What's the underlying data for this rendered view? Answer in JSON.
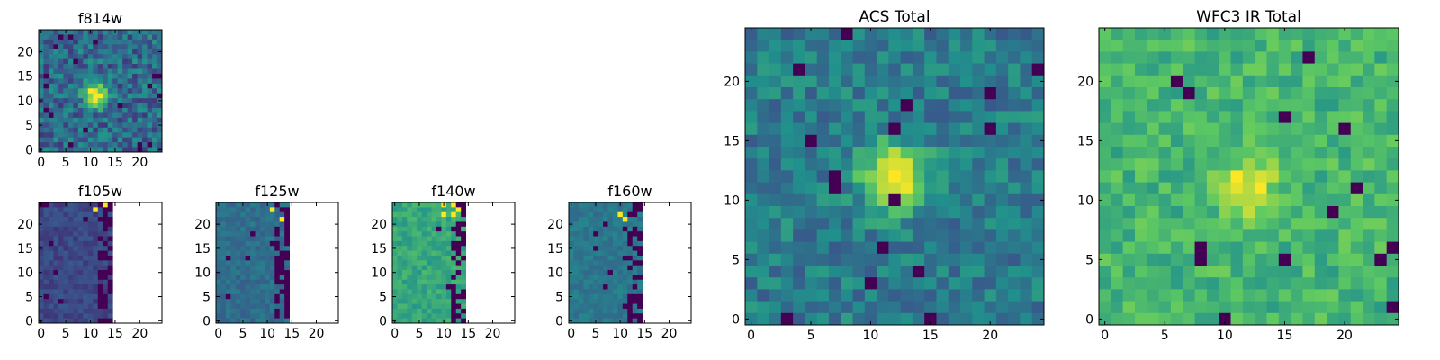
{
  "chart_data": [
    {
      "type": "heatmap",
      "title": "f814w",
      "xlim": [
        0,
        24
      ],
      "ylim": [
        0,
        24
      ],
      "xticks": [
        "0",
        "5",
        "10",
        "15",
        "20"
      ],
      "yticks": [
        "0",
        "5",
        "10",
        "15",
        "20"
      ],
      "source_peak": [
        11,
        11
      ],
      "valid_columns_max": 24
    },
    {
      "type": "heatmap",
      "title": "f105w",
      "xlim": [
        0,
        24
      ],
      "ylim": [
        0,
        24
      ],
      "xticks": [
        "0",
        "5",
        "10",
        "15",
        "20"
      ],
      "yticks": [
        "0",
        "5",
        "10",
        "15",
        "20"
      ],
      "valid_columns_max": 14
    },
    {
      "type": "heatmap",
      "title": "f125w",
      "xlim": [
        0,
        24
      ],
      "ylim": [
        0,
        24
      ],
      "xticks": [
        "0",
        "5",
        "10",
        "15",
        "20"
      ],
      "yticks": [
        "0",
        "5",
        "10",
        "15",
        "20"
      ],
      "valid_columns_max": 14
    },
    {
      "type": "heatmap",
      "title": "f140w",
      "xlim": [
        0,
        24
      ],
      "ylim": [
        0,
        24
      ],
      "xticks": [
        "0",
        "5",
        "10",
        "15",
        "20"
      ],
      "yticks": [
        "0",
        "5",
        "10",
        "15",
        "20"
      ],
      "valid_columns_max": 14
    },
    {
      "type": "heatmap",
      "title": "f160w",
      "xlim": [
        0,
        24
      ],
      "ylim": [
        0,
        24
      ],
      "xticks": [
        "0",
        "5",
        "10",
        "15",
        "20"
      ],
      "yticks": [
        "0",
        "5",
        "10",
        "15",
        "20"
      ],
      "valid_columns_max": 14
    },
    {
      "type": "heatmap",
      "title": "ACS Total",
      "xlim": [
        0,
        24
      ],
      "ylim": [
        0,
        24
      ],
      "xticks": [
        "0",
        "5",
        "10",
        "15",
        "20"
      ],
      "yticks": [
        "0",
        "5",
        "10",
        "15",
        "20"
      ],
      "source_peak": [
        12,
        12
      ],
      "valid_columns_max": 24
    },
    {
      "type": "heatmap",
      "title": "WFC3 IR Total",
      "xlim": [
        0,
        24
      ],
      "ylim": [
        0,
        24
      ],
      "xticks": [
        "0",
        "5",
        "10",
        "15",
        "20"
      ],
      "yticks": [
        "0",
        "5",
        "10",
        "15",
        "20"
      ],
      "source_peak": [
        12,
        11
      ],
      "valid_columns_max": 24
    }
  ],
  "colormap": [
    "#440154",
    "#3b528b",
    "#21918c",
    "#5ec962",
    "#fde725"
  ]
}
